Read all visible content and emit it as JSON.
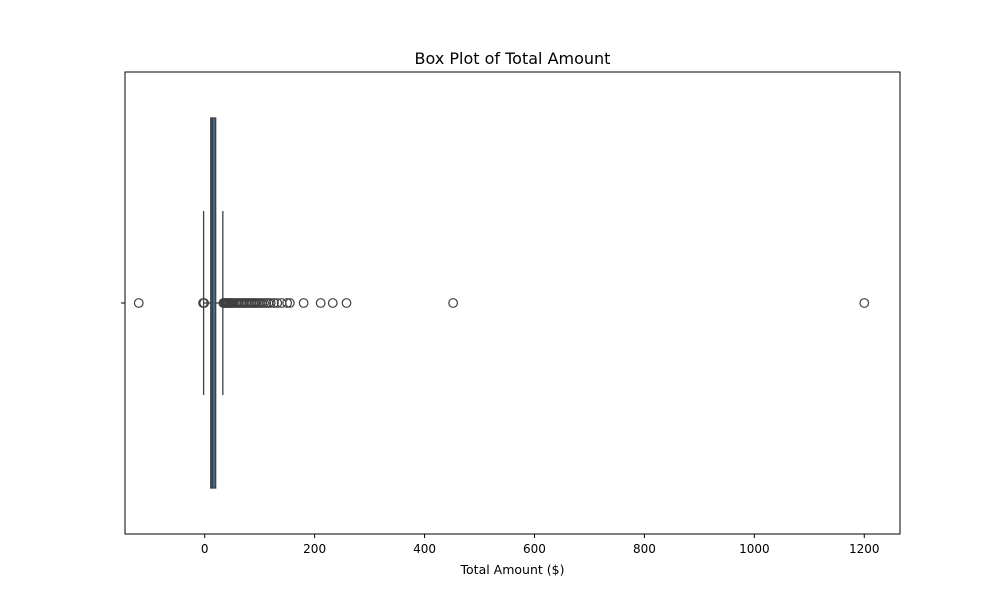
{
  "chart_data": {
    "type": "box",
    "title": "Box Plot of Total Amount",
    "xlabel": "Total Amount ($)",
    "ylabel": "",
    "xlim": [
      -145,
      1265
    ],
    "xticks": [
      0,
      200,
      400,
      600,
      800,
      1000,
      1200
    ],
    "xtick_labels": [
      "0",
      "200",
      "400",
      "600",
      "800",
      "1000",
      "1200"
    ],
    "grid": false,
    "box": {
      "whisker_low": -2,
      "q1": 11,
      "median": 14,
      "q3": 20,
      "whisker_high": 33,
      "fill_color": "#3a6e98",
      "edge_color": "#3f3f3f"
    },
    "outliers": [
      -120,
      -3,
      -1,
      34,
      36,
      38,
      40,
      42,
      44,
      46,
      48,
      50,
      52,
      55,
      58,
      61,
      64,
      67,
      70,
      73,
      76,
      79,
      82,
      85,
      88,
      91,
      94,
      97,
      100,
      104,
      108,
      112,
      116,
      120,
      126,
      132,
      140,
      150,
      155,
      180,
      211,
      233,
      258,
      452,
      1200
    ]
  }
}
